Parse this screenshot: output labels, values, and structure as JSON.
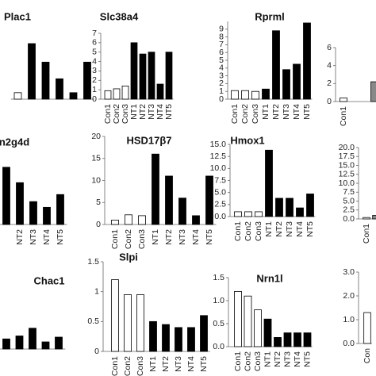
{
  "chart_data": [
    {
      "type": "bar",
      "title": "Plac1",
      "categories": [
        null,
        null,
        null,
        null,
        null,
        null
      ],
      "values": [
        0.7,
        6,
        4,
        2.2,
        0.7,
        4
      ],
      "colors": [
        "#ffffff",
        "#000000",
        "#000000",
        "#000000",
        "#000000",
        "#000000"
      ]
    },
    {
      "type": "bar",
      "title": "Slc38a4",
      "categories": [
        "Con1",
        "Con2",
        "Con3",
        "NT1",
        "NT2",
        "NT3",
        "NT4",
        "NT5"
      ],
      "values": [
        0.9,
        1.1,
        1.4,
        6,
        4.8,
        5,
        1.6,
        5
      ],
      "colors": [
        "#ffffff",
        "#ffffff",
        "#ffffff",
        "#000000",
        "#000000",
        "#000000",
        "#000000",
        "#000000"
      ],
      "ylim": [
        0,
        7
      ],
      "yticks": [
        0,
        1,
        2,
        3,
        4,
        5,
        6,
        7
      ]
    },
    {
      "type": "bar",
      "title": "Rprml",
      "categories": [
        "Con1",
        "Con2",
        "Con3",
        "NT1",
        "NT2",
        "NT3",
        "NT4",
        "NT5"
      ],
      "values": [
        1.1,
        1.1,
        1.0,
        1.3,
        8.8,
        3.8,
        4.5,
        9.8
      ],
      "colors": [
        "#ffffff",
        "#ffffff",
        "#ffffff",
        "#000000",
        "#000000",
        "#000000",
        "#000000",
        "#000000"
      ],
      "ylim": [
        0,
        10
      ],
      "yticks": [
        0,
        1,
        2,
        3,
        4,
        5,
        6,
        7,
        8,
        9
      ]
    },
    {
      "type": "bar",
      "categories": [
        "Con1",
        null
      ],
      "values": [
        0.4,
        2.2
      ],
      "colors": [
        "#ffffff",
        "#888888"
      ],
      "ylim": [
        0,
        6
      ],
      "yticks": [
        0,
        2,
        4,
        6
      ]
    },
    {
      "type": "bar",
      "title": "n2g4d",
      "categories": [
        null,
        "NT2",
        "NT3",
        "NT4",
        "NT5"
      ],
      "values": [
        13,
        9.5,
        5.2,
        3.9,
        6.8
      ],
      "colors": [
        "#000000",
        "#000000",
        "#000000",
        "#000000",
        "#000000"
      ]
    },
    {
      "type": "bar",
      "title": "HSD17β7",
      "categories": [
        "Con1",
        "Con2",
        "Con3",
        "NT1",
        "NT2",
        "NT3",
        "NT4",
        "NT5"
      ],
      "values": [
        1,
        2.2,
        2,
        16,
        11,
        6,
        2,
        11
      ],
      "colors": [
        "#ffffff",
        "#ffffff",
        "#ffffff",
        "#000000",
        "#000000",
        "#000000",
        "#000000",
        "#000000"
      ],
      "ylim": [
        0,
        20
      ],
      "yticks": [
        0,
        5,
        10,
        15,
        20
      ]
    },
    {
      "type": "bar",
      "title": "Hmox1",
      "categories": [
        "Con1",
        "Con2",
        "Con3",
        "NT1",
        "NT2",
        "NT3",
        "NT4",
        "NT5"
      ],
      "values": [
        1.0,
        1.0,
        1.0,
        13.8,
        3.8,
        3.8,
        1.8,
        4.7
      ],
      "colors": [
        "#ffffff",
        "#ffffff",
        "#ffffff",
        "#000000",
        "#000000",
        "#000000",
        "#000000",
        "#000000"
      ],
      "ylim": [
        0,
        15
      ],
      "yticks": [
        {
          "value": 0,
          "label": "0.0"
        },
        {
          "value": 2.5,
          "label": "2.5"
        },
        {
          "value": 5,
          "label": "5.0"
        },
        {
          "value": 7.5,
          "label": "7.5"
        },
        {
          "value": 10,
          "label": "10.0"
        },
        {
          "value": 12.5,
          "label": "12.5"
        },
        {
          "value": 15,
          "label": "15.0"
        }
      ]
    },
    {
      "type": "bar",
      "categories": [
        "Con1",
        null
      ],
      "values": [
        0.4,
        1.0
      ],
      "colors": [
        "#ffffff",
        "#888888"
      ],
      "ylim": [
        0,
        20
      ],
      "yticks": [
        {
          "value": 0,
          "label": "0.0"
        },
        {
          "value": 2.5,
          "label": "2.5"
        },
        {
          "value": 5,
          "label": "5.0"
        },
        {
          "value": 7.5,
          "label": "7.5"
        },
        {
          "value": 10,
          "label": "10.0"
        },
        {
          "value": 12.5,
          "label": "12.5"
        },
        {
          "value": 15,
          "label": "15.0"
        },
        {
          "value": 17.5,
          "label": "17.5"
        },
        {
          "value": 20,
          "label": "20.0"
        }
      ]
    },
    {
      "type": "bar",
      "title": "Chac1",
      "categories": [
        null,
        null,
        null,
        null,
        null
      ],
      "values": [
        0.17,
        0.22,
        0.35,
        0.12,
        0.2
      ],
      "colors": [
        "#000000",
        "#000000",
        "#000000",
        "#000000",
        "#000000"
      ]
    },
    {
      "type": "bar",
      "title": "Slpi",
      "categories": [
        "Con1",
        "Con2",
        "Con3",
        "NT1",
        "NT2",
        "NT3",
        "NT4",
        "NT5"
      ],
      "values": [
        1.2,
        0.95,
        0.95,
        0.5,
        0.45,
        0.4,
        0.4,
        0.6
      ],
      "colors": [
        "#ffffff",
        "#ffffff",
        "#ffffff",
        "#000000",
        "#000000",
        "#000000",
        "#000000",
        "#000000"
      ],
      "ylim": [
        0,
        1.5
      ],
      "yticks": [
        0,
        0.5,
        1,
        1.5
      ]
    },
    {
      "type": "bar",
      "title": "Nrn1l",
      "categories": [
        "Con1",
        "Con2",
        "Con3",
        "NT1",
        "NT2",
        "NT3",
        "NT4",
        "NT5"
      ],
      "values": [
        1.2,
        1.1,
        0.8,
        0.6,
        0.2,
        0.3,
        0.3,
        0.3
      ],
      "colors": [
        "#ffffff",
        "#ffffff",
        "#ffffff",
        "#000000",
        "#000000",
        "#000000",
        "#000000",
        "#000000"
      ],
      "ylim": [
        0,
        1.5
      ],
      "yticks": [
        {
          "value": 0,
          "label": "0.0"
        },
        {
          "value": 0.5,
          "label": "0.5"
        },
        {
          "value": 1,
          "label": "1.0"
        },
        {
          "value": 1.5,
          "label": "1.5"
        }
      ]
    },
    {
      "type": "bar",
      "categories": [
        "Con"
      ],
      "values": [
        1.3
      ],
      "colors": [
        "#ffffff"
      ],
      "ylim": [
        0,
        3
      ],
      "yticks": [
        {
          "value": 0,
          "label": "0.0"
        },
        {
          "value": 1,
          "label": "1.0"
        },
        {
          "value": 2,
          "label": "2.0"
        },
        {
          "value": 3,
          "label": "3.0"
        }
      ]
    }
  ]
}
